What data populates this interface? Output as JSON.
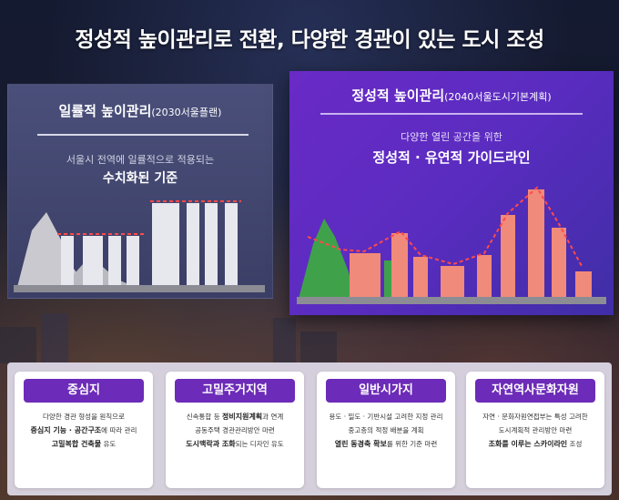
{
  "title": "정성적 높이관리로 전환, 다양한 경관이 있는 도시 조성",
  "left_panel": {
    "title": "일률적 높이관리",
    "title_sub": "(2030서울플랜)",
    "desc_line1": "서울시 전역에 일률적으로 적용되는",
    "desc_line2": "수치화된 기준"
  },
  "right_panel": {
    "title": "정성적 높이관리",
    "title_sub": "(2040서울도시기본계획)",
    "desc_line1": "다양한 열린 공간을 위한",
    "desc_line2": "정성적 · 유연적 가이드라인"
  },
  "cards": [
    {
      "title": "중심지",
      "line1": "다양한 경관 형성을 원칙으로",
      "line2_bold": "중심지 기능 · 공간구조",
      "line2_rest": "에 따라 관리",
      "line3_bold": "고밀복합 건축물",
      "line3_rest": " 유도"
    },
    {
      "title": "고밀주거지역",
      "line1_pre": "신속통합 등 ",
      "line1_bold": "정비지원계획",
      "line1_rest": "과 연계",
      "line2": "공동주택 경관관리방안 마련",
      "line3_bold": "도시맥락과 조화",
      "line3_rest": "되는 디자인 유도"
    },
    {
      "title": "일반시가지",
      "line1": "용도 · 밀도 · 기반시설 고려한 지정 관리",
      "line2": "중고층의 적정 배분을 계획",
      "line3_bold": "열린 동경축 확보",
      "line3_rest": "를 위한 기준 마련"
    },
    {
      "title": "자연역사문화자원",
      "line1": "자연 · 문화자원연접부는 특성 고려한",
      "line2": "도시계획적 관리방안 마련",
      "line3_bold": "조화를 이루는 스카이라인",
      "line3_rest": " 조성"
    }
  ],
  "colors": {
    "card_header": "#6c2bb8",
    "right_panel": "#6a2ac6",
    "left_panel": "#4a4f7a",
    "bar_pink": "#f08a7a",
    "mountain_green": "#3fa24a",
    "mountain_grey": "#c9c9cf",
    "dashed_red": "#ff4a4a"
  }
}
